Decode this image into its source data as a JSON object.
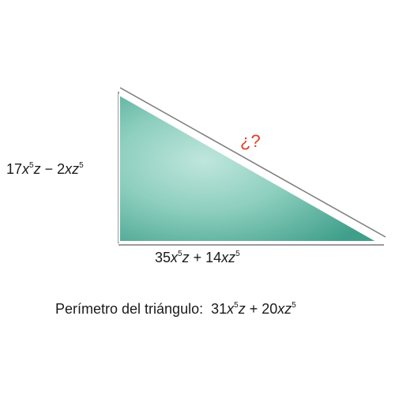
{
  "diagram": {
    "shape": "right triangle",
    "fill_color": "#5bb5a2",
    "edge_color": "#7a7a7a",
    "side_left": {
      "terms": [
        {
          "coef": "17",
          "v1": "x",
          "e1": "5",
          "v2": "z",
          "e2": ""
        },
        {
          "op": "−"
        },
        {
          "coef": "2",
          "v1": "x",
          "e1": "",
          "v2": "z",
          "e2": "5"
        }
      ]
    },
    "side_bottom": {
      "terms": [
        {
          "coef": "35",
          "v1": "x",
          "e1": "5",
          "v2": "z",
          "e2": ""
        },
        {
          "op": "+"
        },
        {
          "coef": "14",
          "v1": "x",
          "e1": "",
          "v2": "z",
          "e2": "5"
        }
      ]
    },
    "hypotenuse_label": "¿?",
    "hypotenuse_color": "#e0402a"
  },
  "perimeter": {
    "text": "Perímetro del triángulo:",
    "terms": [
      {
        "coef": "31",
        "v1": "x",
        "e1": "5",
        "v2": "z",
        "e2": ""
      },
      {
        "op": "+"
      },
      {
        "coef": "20",
        "v1": "x",
        "e1": "",
        "v2": "z",
        "e2": "5"
      }
    ]
  }
}
